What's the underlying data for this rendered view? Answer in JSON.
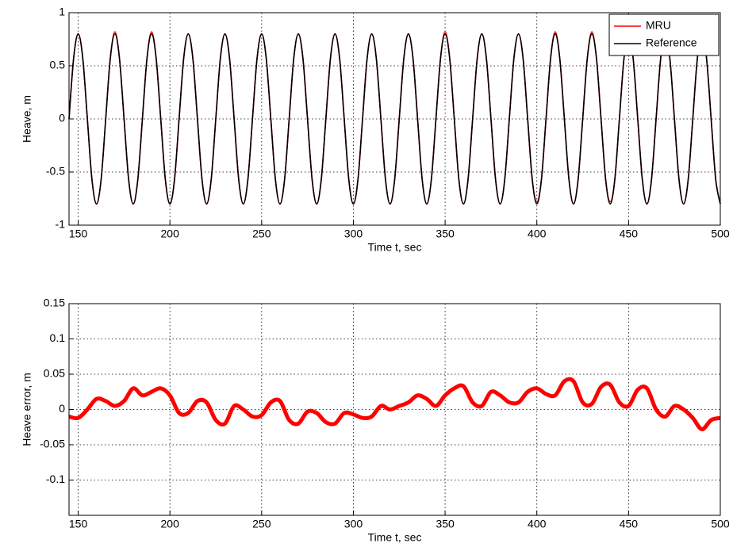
{
  "chart_data": [
    {
      "type": "line",
      "xlabel": "Time  t, sec",
      "ylabel": "Heave, m",
      "xlim": [
        145,
        500
      ],
      "ylim": [
        -1,
        1
      ],
      "xticks": [
        150,
        200,
        250,
        300,
        350,
        400,
        450,
        500
      ],
      "yticks": [
        -1,
        -0.5,
        0,
        0.5,
        1
      ],
      "grid": true,
      "legend": "upper right",
      "x": [
        145,
        147.5,
        150,
        152.5,
        155,
        157.5,
        160,
        162.5,
        165,
        167.5,
        170,
        172.5,
        175,
        177.5,
        180,
        182.5,
        185,
        187.5,
        190,
        192.5,
        195,
        197.5,
        200,
        202.5,
        205,
        207.5,
        210,
        212.5,
        215,
        217.5,
        220,
        222.5,
        225,
        227.5,
        230,
        232.5,
        235,
        237.5,
        240,
        242.5,
        245,
        247.5,
        250,
        252.5,
        255,
        257.5,
        260,
        262.5,
        265,
        267.5,
        270,
        272.5,
        275,
        277.5,
        280,
        282.5,
        285,
        287.5,
        290,
        292.5,
        295,
        297.5,
        300,
        302.5,
        305,
        307.5,
        310,
        312.5,
        315,
        317.5,
        320,
        322.5,
        325,
        327.5,
        330,
        332.5,
        335,
        337.5,
        340,
        342.5,
        345,
        347.5,
        350,
        352.5,
        355,
        357.5,
        360,
        362.5,
        365,
        367.5,
        370,
        372.5,
        375,
        377.5,
        380,
        382.5,
        385,
        387.5,
        390,
        392.5,
        395,
        397.5,
        400,
        402.5,
        405,
        407.5,
        410,
        412.5,
        415,
        417.5,
        420,
        422.5,
        425,
        427.5,
        430,
        432.5,
        435,
        437.5,
        440,
        442.5,
        445,
        447.5,
        450,
        452.5,
        455,
        457.5,
        460,
        462.5,
        465,
        467.5,
        470,
        472.5,
        475,
        477.5,
        480,
        482.5,
        485,
        487.5,
        490,
        492.5,
        495,
        497.5,
        500
      ],
      "series": [
        {
          "name": "MRU",
          "color": "#ff0000",
          "values": [
            0,
            0.57,
            0.8,
            0.57,
            0,
            -0.57,
            -0.8,
            -0.57,
            0,
            0.57,
            0.82,
            0.57,
            0,
            -0.57,
            -0.8,
            -0.57,
            0,
            0.57,
            0.82,
            0.57,
            0,
            -0.57,
            -0.8,
            -0.57,
            0,
            0.57,
            0.8,
            0.57,
            0,
            -0.57,
            -0.8,
            -0.57,
            0,
            0.57,
            0.8,
            0.57,
            0,
            -0.57,
            -0.8,
            -0.57,
            0,
            0.57,
            0.8,
            0.57,
            0,
            -0.57,
            -0.8,
            -0.57,
            0,
            0.57,
            0.8,
            0.57,
            0,
            -0.57,
            -0.8,
            -0.57,
            0,
            0.57,
            0.8,
            0.57,
            0,
            -0.57,
            -0.8,
            -0.57,
            0,
            0.57,
            0.8,
            0.57,
            0,
            -0.57,
            -0.8,
            -0.57,
            0,
            0.57,
            0.8,
            0.57,
            0,
            -0.57,
            -0.8,
            -0.57,
            0,
            0.57,
            0.82,
            0.57,
            0,
            -0.57,
            -0.8,
            -0.57,
            0,
            0.57,
            0.8,
            0.57,
            0,
            -0.57,
            -0.8,
            -0.57,
            0,
            0.57,
            0.8,
            0.57,
            0,
            -0.57,
            -0.78,
            -0.57,
            0,
            0.57,
            0.82,
            0.57,
            0,
            -0.57,
            -0.8,
            -0.57,
            0,
            0.57,
            0.82,
            0.57,
            0,
            -0.57,
            -0.78,
            -0.57,
            0,
            0.57,
            0.8,
            0.57,
            0,
            -0.57,
            -0.8,
            -0.57,
            0,
            0.57,
            0.8,
            0.57,
            0,
            -0.57,
            -0.8,
            -0.57,
            0,
            0.57,
            0.8,
            0.57,
            0,
            -0.57,
            -0.8
          ]
        },
        {
          "name": "Reference",
          "color": "#000000",
          "values": [
            0,
            0.57,
            0.8,
            0.57,
            0,
            -0.57,
            -0.8,
            -0.57,
            0,
            0.57,
            0.8,
            0.57,
            0,
            -0.57,
            -0.8,
            -0.57,
            0,
            0.57,
            0.8,
            0.57,
            0,
            -0.57,
            -0.8,
            -0.57,
            0,
            0.57,
            0.8,
            0.57,
            0,
            -0.57,
            -0.8,
            -0.57,
            0,
            0.57,
            0.8,
            0.57,
            0,
            -0.57,
            -0.8,
            -0.57,
            0,
            0.57,
            0.8,
            0.57,
            0,
            -0.57,
            -0.8,
            -0.57,
            0,
            0.57,
            0.8,
            0.57,
            0,
            -0.57,
            -0.8,
            -0.57,
            0,
            0.57,
            0.8,
            0.57,
            0,
            -0.57,
            -0.8,
            -0.57,
            0,
            0.57,
            0.8,
            0.57,
            0,
            -0.57,
            -0.8,
            -0.57,
            0,
            0.57,
            0.8,
            0.57,
            0,
            -0.57,
            -0.8,
            -0.57,
            0,
            0.57,
            0.8,
            0.57,
            0,
            -0.57,
            -0.8,
            -0.57,
            0,
            0.57,
            0.8,
            0.57,
            0,
            -0.57,
            -0.8,
            -0.57,
            0,
            0.57,
            0.8,
            0.57,
            0,
            -0.57,
            -0.8,
            -0.57,
            0,
            0.57,
            0.8,
            0.57,
            0,
            -0.57,
            -0.8,
            -0.57,
            0,
            0.57,
            0.8,
            0.57,
            0,
            -0.57,
            -0.8,
            -0.57,
            0,
            0.57,
            0.8,
            0.57,
            0,
            -0.57,
            -0.8,
            -0.57,
            0,
            0.57,
            0.8,
            0.57,
            0,
            -0.57,
            -0.8,
            -0.57,
            0,
            0.57,
            0.8,
            0.57,
            0,
            -0.57,
            -0.8
          ]
        }
      ]
    },
    {
      "type": "line",
      "xlabel": "Time  t, sec",
      "ylabel": "Heave error, m",
      "xlim": [
        145,
        500
      ],
      "ylim": [
        -0.15,
        0.15
      ],
      "xticks": [
        150,
        200,
        250,
        300,
        350,
        400,
        450,
        500
      ],
      "yticks": [
        -0.1,
        -0.05,
        0,
        0.05,
        0.1,
        0.15
      ],
      "grid": true,
      "x": [
        145,
        150,
        155,
        160,
        165,
        170,
        175,
        180,
        185,
        190,
        195,
        200,
        205,
        210,
        215,
        220,
        225,
        230,
        235,
        240,
        245,
        250,
        255,
        260,
        265,
        270,
        275,
        280,
        285,
        290,
        295,
        300,
        305,
        310,
        315,
        320,
        325,
        330,
        335,
        340,
        345,
        350,
        355,
        360,
        365,
        370,
        375,
        380,
        385,
        390,
        395,
        400,
        405,
        410,
        415,
        420,
        425,
        430,
        435,
        440,
        445,
        450,
        455,
        460,
        465,
        470,
        475,
        480,
        485,
        490,
        495,
        500
      ],
      "series": [
        {
          "color": "#ff0000",
          "values": [
            -0.01,
            -0.012,
            0.0,
            0.015,
            0.012,
            0.005,
            0.012,
            0.03,
            0.02,
            0.025,
            0.03,
            0.02,
            -0.005,
            -0.005,
            0.012,
            0.01,
            -0.015,
            -0.02,
            0.005,
            0.0,
            -0.01,
            -0.008,
            0.01,
            0.012,
            -0.015,
            -0.02,
            -0.003,
            -0.005,
            -0.018,
            -0.02,
            -0.005,
            -0.007,
            -0.012,
            -0.01,
            0.005,
            0.0,
            0.005,
            0.01,
            0.02,
            0.015,
            0.005,
            0.02,
            0.03,
            0.033,
            0.01,
            0.005,
            0.025,
            0.02,
            0.01,
            0.01,
            0.025,
            0.03,
            0.022,
            0.02,
            0.04,
            0.04,
            0.01,
            0.008,
            0.032,
            0.035,
            0.01,
            0.005,
            0.028,
            0.03,
            0.0,
            -0.01,
            0.005,
            0.0,
            -0.012,
            -0.028,
            -0.015,
            -0.012
          ]
        }
      ]
    }
  ]
}
